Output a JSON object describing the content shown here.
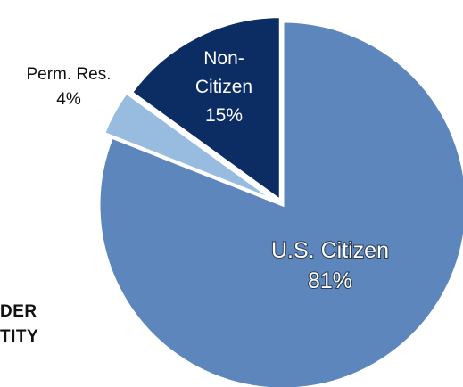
{
  "chart_data": {
    "type": "pie",
    "slices": [
      {
        "name_lines": [
          "U.S. Citizen"
        ],
        "value_label": "81%",
        "value": 81,
        "color": "#5d86bd"
      },
      {
        "name_lines": [
          "Perm. Res."
        ],
        "value_label": "4%",
        "value": 4,
        "color": "#97bcdf"
      },
      {
        "name_lines": [
          "Non-",
          "Citizen"
        ],
        "value_label": "15%",
        "value": 15,
        "color": "#0c2d63"
      }
    ]
  },
  "side_text": [
    "DER",
    "TITY"
  ]
}
